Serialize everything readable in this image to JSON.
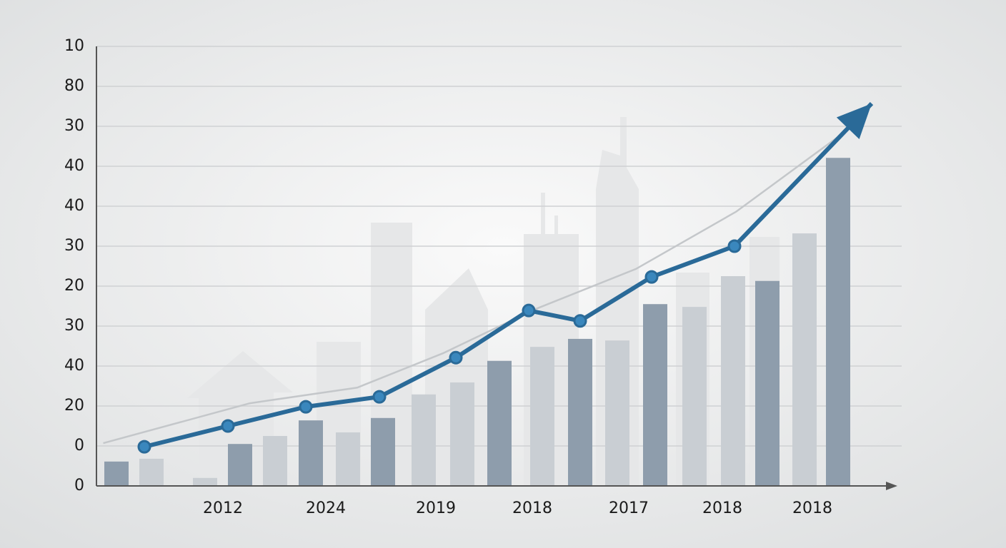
{
  "chart_data": {
    "type": "line",
    "xlim": [
      0,
      112
    ],
    "ylim": [
      0,
      11
    ],
    "xticks": [
      {
        "value": 17.7,
        "label": "2012"
      },
      {
        "value": 32.1,
        "label": "2024"
      },
      {
        "value": 47.5,
        "label": "2019"
      },
      {
        "value": 61,
        "label": "2018"
      },
      {
        "value": 74.5,
        "label": "2017"
      },
      {
        "value": 87.6,
        "label": "2018"
      },
      {
        "value": 100.2,
        "label": "2018"
      }
    ],
    "yticks": [
      0,
      {
        "value": 1,
        "label": "0"
      },
      {
        "value": 2,
        "label": "20"
      },
      {
        "value": 3,
        "label": "40"
      },
      {
        "value": 4,
        "label": "30"
      },
      {
        "value": 5,
        "label": "20"
      },
      {
        "value": 6,
        "label": "30"
      },
      {
        "value": 7,
        "label": "40"
      },
      {
        "value": 8,
        "label": "40"
      },
      {
        "value": 9,
        "label": "30"
      },
      {
        "value": 10,
        "label": "80"
      },
      {
        "value": 11,
        "label": "10"
      }
    ],
    "grid": true,
    "series": [
      {
        "type": "bar",
        "color": "#c9ced3",
        "x": [
          7.7,
          15.2,
          25,
          35.2,
          45.8,
          51.2,
          62.4,
          72.9,
          83.7,
          89.1,
          99.1
        ],
        "values": [
          0.68,
          0.2,
          1.25,
          1.34,
          2.29,
          2.59,
          3.48,
          3.64,
          4.48,
          5.25,
          6.32
        ]
      },
      {
        "type": "bar",
        "color": "#8e9dac",
        "x": [
          2.8,
          20.1,
          30,
          40.1,
          56.4,
          67.7,
          78.2,
          93.9,
          103.8
        ],
        "values": [
          0.61,
          1.05,
          1.64,
          1.7,
          3.13,
          3.68,
          4.55,
          5.13,
          8.21
        ]
      },
      {
        "type": "line",
        "color": "#c4c7ca",
        "x": [
          0.95,
          21.5,
          36.5,
          48.5,
          61.5,
          75.5,
          89.5,
          106.5
        ],
        "values": [
          1.07,
          2.07,
          2.46,
          3.32,
          4.43,
          5.43,
          6.86,
          9.09
        ]
      },
      {
        "type": "line",
        "color": "#2a6a98",
        "markers": true,
        "arrow": true,
        "x": [
          6.7,
          18.4,
          29.3,
          39.6,
          50.3,
          60.5,
          67.7,
          77.7,
          89.3,
          108.5
        ],
        "values": [
          0.98,
          1.5,
          1.98,
          2.23,
          3.21,
          4.39,
          4.13,
          5.23,
          6.0,
          9.57
        ]
      }
    ]
  }
}
